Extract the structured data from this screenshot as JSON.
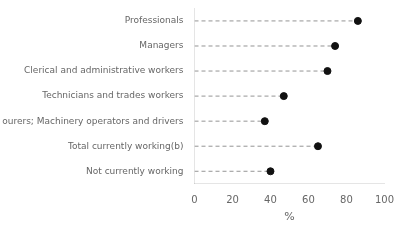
{
  "chart_data": {
    "type": "lollipop",
    "orientation": "horizontal",
    "categories": [
      "Not currently working",
      "Total currently working(b)",
      "Labourers; Machinery operators and drivers",
      "Technicians and trades workers",
      "Clerical and administrative workers",
      "Managers",
      "Professionals"
    ],
    "values": [
      40,
      65,
      37,
      47,
      70,
      74,
      86
    ],
    "xlabel": "%",
    "xlim": [
      0,
      100
    ],
    "xticks": [
      0,
      20,
      40,
      60,
      80,
      100
    ],
    "color": "#111111",
    "marker": "circle",
    "line_style": "dashed",
    "grid": false
  }
}
